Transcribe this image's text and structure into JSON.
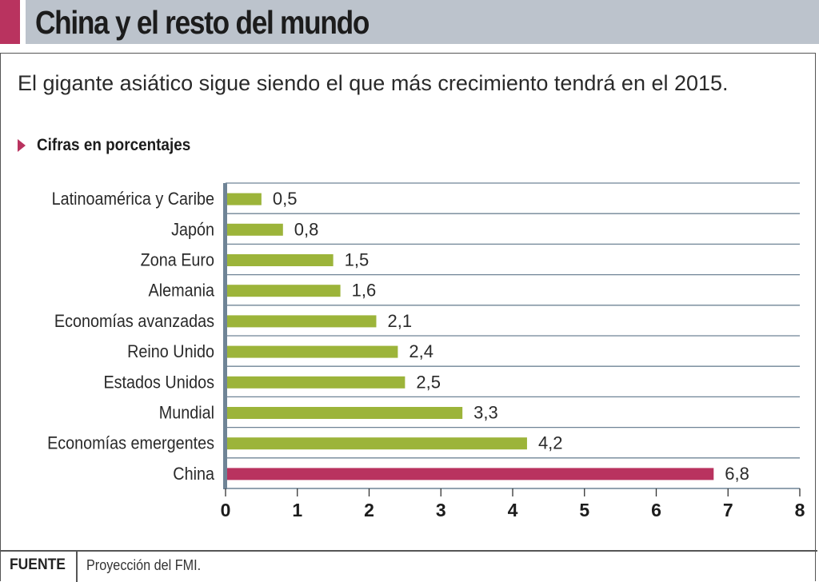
{
  "header": {
    "title": "China y el resto del mundo"
  },
  "subtitle": "El gigante asiático sigue siendo el que más crecimiento tendrá en el 2015.",
  "unit_label": "Cifras en porcentajes",
  "footer": {
    "label": "FUENTE",
    "text": "Proyección del FMI."
  },
  "colors": {
    "accent": "#b9335f",
    "bar": "#9cb43a",
    "highlight_bar": "#b9335f",
    "axis": "#6f8496",
    "header_bar": "#bcc3cc"
  },
  "chart_data": {
    "type": "bar",
    "orientation": "horizontal",
    "title": "China y el resto del mundo",
    "subtitle": "El gigante asiático sigue siendo el que más crecimiento tendrá en el 2015.",
    "xlabel": "",
    "ylabel": "",
    "unit": "Cifras en porcentajes",
    "categories": [
      "Latinoamérica y Caribe",
      "Japón",
      "Zona Euro",
      "Alemania",
      "Economías avanzadas",
      "Reino Unido",
      "Estados Unidos",
      "Mundial",
      "Economías emergentes",
      "China"
    ],
    "values": [
      0.5,
      0.8,
      1.5,
      1.6,
      2.1,
      2.4,
      2.5,
      3.3,
      4.2,
      6.8
    ],
    "value_labels": [
      "0,5",
      "0,8",
      "1,5",
      "1,6",
      "2,1",
      "2,4",
      "2,5",
      "3,3",
      "4,2",
      "6,8"
    ],
    "highlight": "China",
    "xlim": [
      0,
      8
    ],
    "xticks": [
      0,
      1,
      2,
      3,
      4,
      5,
      6,
      7,
      8
    ],
    "grid": true,
    "legend": "none",
    "source": "Proyección del FMI."
  }
}
